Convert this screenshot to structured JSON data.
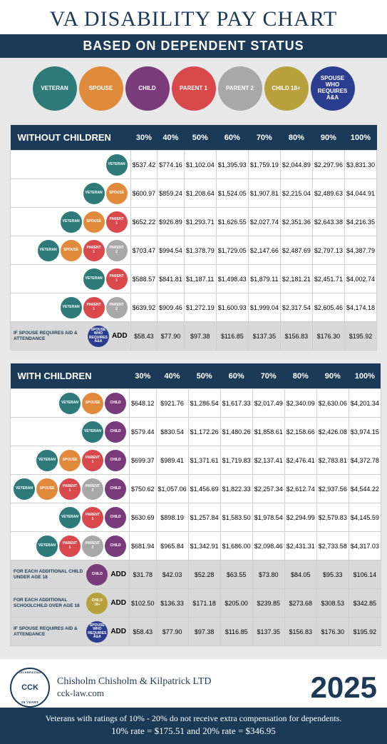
{
  "title": "VA DISABILITY PAY CHART",
  "subtitle": "BASED ON DEPENDENT STATUS",
  "year": "2025",
  "colors": {
    "veteran": "#2d7a78",
    "spouse": "#e08a3c",
    "child": "#7a3b7a",
    "parent1": "#d9484a",
    "parent2": "#a8a8a8",
    "child18": "#b8a13c",
    "spouseAA": "#2a3d8f",
    "navy": "#1b3a57"
  },
  "legend": [
    {
      "key": "veteran",
      "label": "VETERAN"
    },
    {
      "key": "spouse",
      "label": "SPOUSE"
    },
    {
      "key": "child",
      "label": "CHILD"
    },
    {
      "key": "parent1",
      "label": "PARENT 1"
    },
    {
      "key": "parent2",
      "label": "PARENT 2"
    },
    {
      "key": "child18",
      "label": "CHILD 18+"
    },
    {
      "key": "spouseAA",
      "label": "SPOUSE WHO REQUIRES A&A"
    }
  ],
  "columns": [
    "30%",
    "40%",
    "50%",
    "60%",
    "70%",
    "80%",
    "90%",
    "100%"
  ],
  "tables": [
    {
      "title": "WITHOUT CHILDREN",
      "rows": [
        {
          "icons": [
            "veteran"
          ],
          "values": [
            "$537.42",
            "$774.16",
            "$1,102.04",
            "$1,395.93",
            "$1,759.19",
            "$2,044.89",
            "$2,297.96",
            "$3,831.30"
          ]
        },
        {
          "icons": [
            "veteran",
            "spouse"
          ],
          "values": [
            "$600.97",
            "$859.24",
            "$1,208.64",
            "$1,524.05",
            "$1,907.81",
            "$2,215.04",
            "$2,489.63",
            "$4,044.91"
          ]
        },
        {
          "icons": [
            "veteran",
            "spouse",
            "parent1"
          ],
          "values": [
            "$652.22",
            "$926.89",
            "$1,293.71",
            "$1,626.55",
            "$2,027.74",
            "$2,351.36",
            "$2,643.38",
            "$4,216.35"
          ]
        },
        {
          "icons": [
            "veteran",
            "spouse",
            "parent1",
            "parent2"
          ],
          "values": [
            "$703.47",
            "$994.54",
            "$1,378.79",
            "$1,729.05",
            "$2,147.66",
            "$2,487.69",
            "$2,797.13",
            "$4,387.79"
          ]
        },
        {
          "icons": [
            "veteran",
            "parent1"
          ],
          "values": [
            "$588.57",
            "$841.81",
            "$1,187.11",
            "$1,498.43",
            "$1,879.11",
            "$2,181.21",
            "$2,451.71",
            "$4,002.74"
          ]
        },
        {
          "icons": [
            "veteran",
            "parent1",
            "parent2"
          ],
          "values": [
            "$639.92",
            "$909.46",
            "$1,272.19",
            "$1,600.93",
            "$1,999.04",
            "$2,317.54",
            "$2,605.46",
            "$4,174.18"
          ]
        },
        {
          "addon": true,
          "label": "IF SPOUSE REQUIRES AID & ATTENDANCE",
          "icons": [
            "spouseAA"
          ],
          "add": "ADD",
          "values": [
            "$58.43",
            "$77.90",
            "$97.38",
            "$116.85",
            "$137.35",
            "$156.83",
            "$176.30",
            "$195.92"
          ]
        }
      ]
    },
    {
      "title": "WITH CHILDREN",
      "rows": [
        {
          "icons": [
            "veteran",
            "spouse",
            "child"
          ],
          "values": [
            "$648.12",
            "$921.76",
            "$1,286.54",
            "$1,617.33",
            "$2,017.49",
            "$2,340.09",
            "$2,630.06",
            "$4,201.34"
          ]
        },
        {
          "icons": [
            "veteran",
            "child"
          ],
          "values": [
            "$579.44",
            "$830.54",
            "$1,172.26",
            "$1,480.26",
            "$1,858.61",
            "$2,158.66",
            "$2,426.08",
            "$3,974.15"
          ]
        },
        {
          "icons": [
            "veteran",
            "spouse",
            "parent1",
            "child"
          ],
          "values": [
            "$699.37",
            "$989.41",
            "$1,371.61",
            "$1,719.83",
            "$2,137.41",
            "$2,476.41",
            "$2,783.81",
            "$4,372.78"
          ]
        },
        {
          "icons": [
            "veteran",
            "spouse",
            "parent1",
            "parent2",
            "child"
          ],
          "values": [
            "$750.62",
            "$1,057.06",
            "$1,456.69",
            "$1,822.33",
            "$2,257.34",
            "$2,612.74",
            "$2,937.56",
            "$4,544.22"
          ]
        },
        {
          "icons": [
            "veteran",
            "parent1",
            "child"
          ],
          "values": [
            "$630.69",
            "$898.19",
            "$1,257.84",
            "$1,583.50",
            "$1,978.54",
            "$2,294.99",
            "$2,579.83",
            "$4,145.59"
          ]
        },
        {
          "icons": [
            "veteran",
            "parent1",
            "parent2",
            "child"
          ],
          "values": [
            "$681.94",
            "$965.84",
            "$1,342.91",
            "$1,686.00",
            "$2,098.46",
            "$2,431.31",
            "$2,733.58",
            "$4,317.03"
          ]
        },
        {
          "addon": true,
          "label": "FOR EACH ADDITIONAL CHILD UNDER AGE 18",
          "icons": [
            "child"
          ],
          "add": "ADD",
          "values": [
            "$31.78",
            "$42.03",
            "$52.28",
            "$63.55",
            "$73.80",
            "$84.05",
            "$95.33",
            "$106.14"
          ]
        },
        {
          "addon": true,
          "label": "FOR EACH ADDITIONAL SCHOOLCHILD OVER AGE 18",
          "icons": [
            "child18"
          ],
          "add": "ADD",
          "values": [
            "$102.50",
            "$136.33",
            "$171.18",
            "$205.00",
            "$239.85",
            "$273.68",
            "$308.53",
            "$342.85"
          ]
        },
        {
          "addon": true,
          "label": "IF SPOUSE REQUIRES AID & ATTENDANCE",
          "icons": [
            "spouseAA"
          ],
          "add": "ADD",
          "values": [
            "$58.43",
            "$77.90",
            "$97.38",
            "$116.85",
            "$137.35",
            "$156.83",
            "$176.30",
            "$195.92"
          ]
        }
      ]
    }
  ],
  "footer": {
    "badge": "CCK",
    "firm": "Chisholm Chisholm & Kilpatrick LTD",
    "site": "cck-law.com",
    "note1": "Veterans with ratings of 10% - 20% do not receive extra compensation for dependents.",
    "note2": "10% rate = $175.51   and   20% rate = $346.95"
  }
}
